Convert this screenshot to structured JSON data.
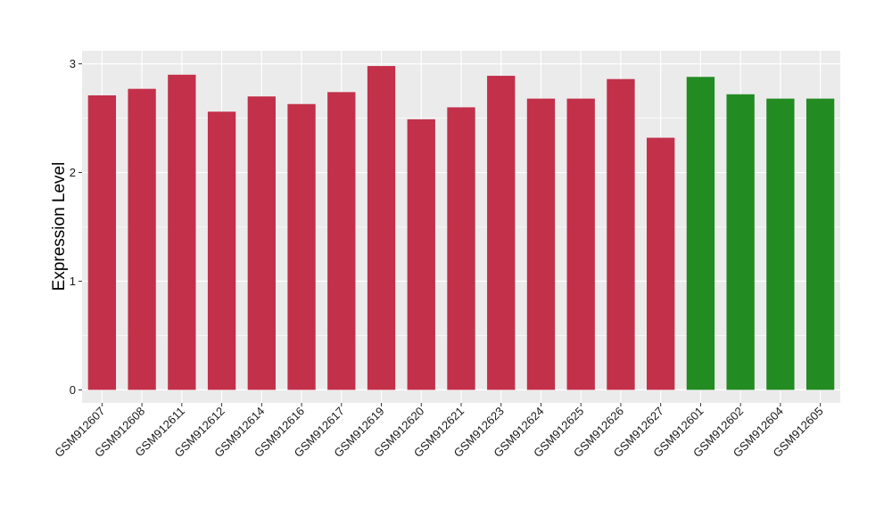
{
  "chart_data": {
    "type": "bar",
    "title": "",
    "xlabel": "",
    "ylabel": "Expression Level",
    "ylim": [
      -0.12,
      3.12
    ],
    "yticks": [
      0,
      1,
      2,
      3
    ],
    "grid": true,
    "legend": "none",
    "panel_background": "#ebebeb",
    "grid_color": "#ffffff",
    "categories": [
      "GSM912607",
      "GSM912608",
      "GSM912611",
      "GSM912612",
      "GSM912614",
      "GSM912616",
      "GSM912617",
      "GSM912619",
      "GSM912620",
      "GSM912621",
      "GSM912623",
      "GSM912624",
      "GSM912625",
      "GSM912626",
      "GSM912627",
      "GSM912601",
      "GSM912602",
      "GSM912604",
      "GSM912605"
    ],
    "values": [
      2.71,
      2.77,
      2.9,
      2.56,
      2.7,
      2.63,
      2.74,
      2.98,
      2.49,
      2.6,
      2.89,
      2.68,
      2.68,
      2.86,
      2.32,
      2.88,
      2.72,
      2.68,
      2.68
    ],
    "bar_colors": [
      "#c3304a",
      "#c3304a",
      "#c3304a",
      "#c3304a",
      "#c3304a",
      "#c3304a",
      "#c3304a",
      "#c3304a",
      "#c3304a",
      "#c3304a",
      "#c3304a",
      "#c3304a",
      "#c3304a",
      "#c3304a",
      "#c3304a",
      "#228b22",
      "#228b22",
      "#228b22",
      "#228b22"
    ]
  }
}
